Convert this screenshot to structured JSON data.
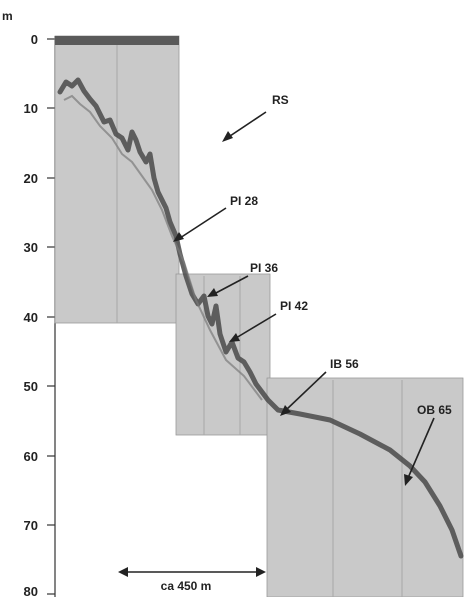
{
  "figure": {
    "unit": "m",
    "depth_ticks": [
      "0",
      "10",
      "20",
      "30",
      "40",
      "50",
      "60",
      "70",
      "80"
    ],
    "scale_bar_label": "ca 450 m"
  },
  "annotations": [
    {
      "id": "rs",
      "label": "RS"
    },
    {
      "id": "pi28",
      "label": "PI 28"
    },
    {
      "id": "pi36",
      "label": "PI 36"
    },
    {
      "id": "pi42",
      "label": "PI 42"
    },
    {
      "id": "ib56",
      "label": "IB 56"
    },
    {
      "id": "ob65",
      "label": "OB 65"
    }
  ],
  "colors": {
    "panel_fill": "#c9c9c9",
    "seafloor_trace": "#4a4a4a",
    "text": "#222222"
  }
}
